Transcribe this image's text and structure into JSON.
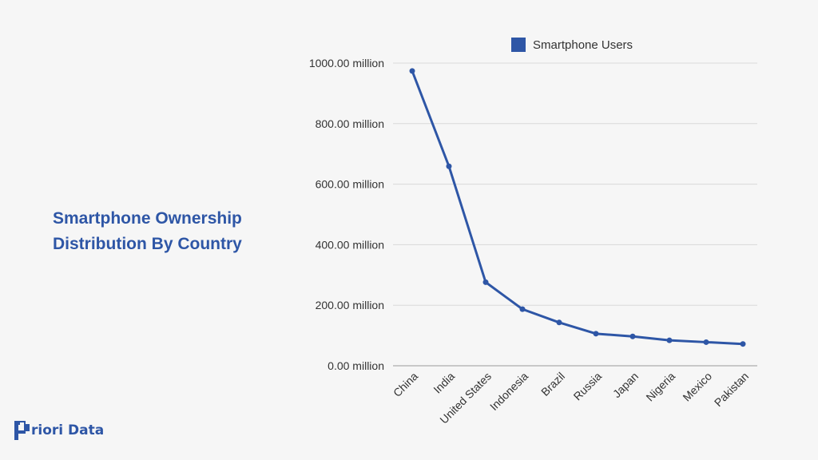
{
  "title": {
    "line1": "Smartphone Ownership",
    "line2": "Distribution By Country"
  },
  "logo": {
    "icon": "priori-logo-icon",
    "text": "riori Data",
    "color": "#2e56a6"
  },
  "chart_data": {
    "type": "line",
    "title": "Smartphone Ownership Distribution By Country",
    "xlabel": "",
    "ylabel": "",
    "categories": [
      "China",
      "India",
      "United States",
      "Indonesia",
      "Brazil",
      "Russia",
      "Japan",
      "Nigeria",
      "Mexico",
      "Pakistan"
    ],
    "series": [
      {
        "name": "Smartphone Users",
        "color": "#2e56a6",
        "values": [
          974,
          659,
          276,
          187,
          143,
          106,
          97,
          84,
          78,
          72
        ]
      }
    ],
    "ylim": [
      0,
      1000
    ],
    "yticks": [
      0,
      200,
      400,
      600,
      800,
      1000
    ],
    "ytick_labels": [
      "0.00 million",
      "200.00 million",
      "400.00 million",
      "600.00 million",
      "800.00 million",
      "1000.00 million"
    ],
    "grid": true,
    "legend": "top-center"
  }
}
